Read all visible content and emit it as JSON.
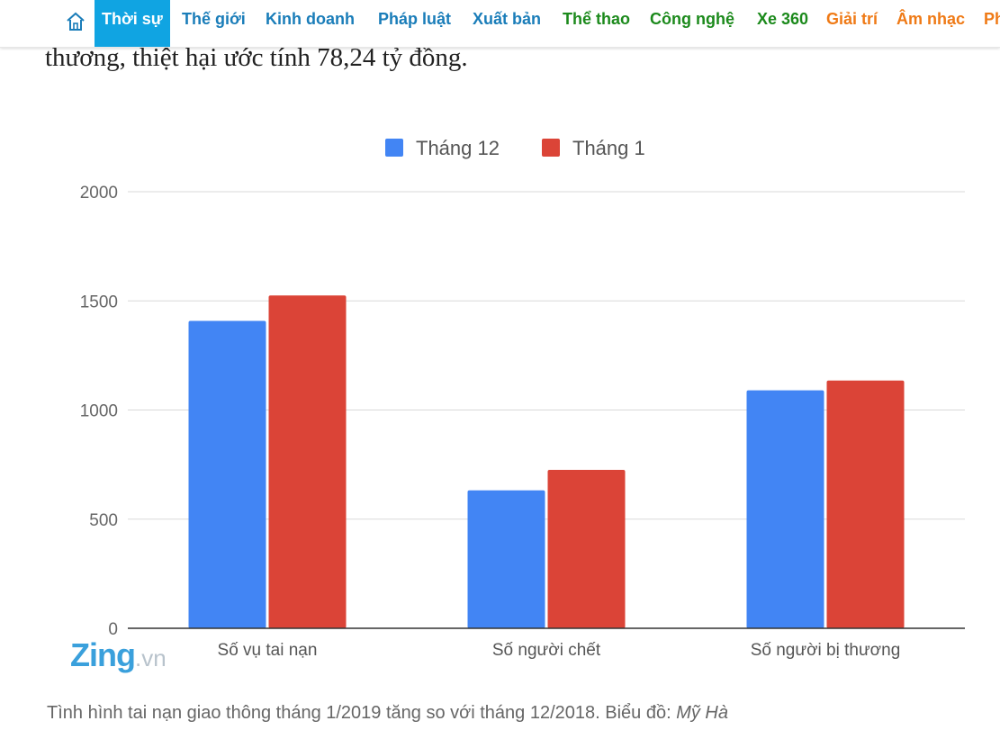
{
  "nav": {
    "items": [
      {
        "label": "Thời sự",
        "color": "#ffffff",
        "active": true
      },
      {
        "label": "Thế giới",
        "color": "#1a7db9"
      },
      {
        "label": "Kinh doanh",
        "color": "#1a7db9"
      },
      {
        "label": "Pháp luật",
        "color": "#1a7db9"
      },
      {
        "label": "Xuất bản",
        "color": "#1a7db9"
      },
      {
        "label": "Thể thao",
        "color": "#1c8a1c"
      },
      {
        "label": "Công nghệ",
        "color": "#1c8a1c"
      },
      {
        "label": "Xe 360",
        "color": "#1c8a1c"
      },
      {
        "label": "Giải trí",
        "color": "#ef7a16"
      },
      {
        "label": "Âm nhạc",
        "color": "#ef7a16"
      },
      {
        "label": "Ph",
        "color": "#ef7a16"
      }
    ],
    "active_bg": "#10a4e2",
    "home_icon": "home-icon"
  },
  "article": {
    "lead_text": "thương, thiệt hại ước tính 78,24 tỷ đồng.",
    "caption_text": "Tình hình tai nạn giao thông tháng 1/2019 tăng so với tháng 12/2018. Biểu đồ: ",
    "caption_author": "Mỹ Hà"
  },
  "watermark": {
    "brand": "Zing",
    "suffix": ".vn"
  },
  "chart_data": {
    "type": "bar",
    "categories": [
      "Số vụ tai nạn",
      "Số người chết",
      "Số người bị thương"
    ],
    "series": [
      {
        "name": "Tháng 12",
        "values": [
          1408,
          632,
          1090
        ],
        "color": "#4285f4"
      },
      {
        "name": "Tháng 1",
        "values": [
          1525,
          726,
          1135
        ],
        "color": "#db4437"
      }
    ],
    "yticks": [
      0,
      500,
      1000,
      1500,
      2000
    ],
    "ylim": [
      0,
      2000
    ],
    "legend": "top",
    "grid": true
  }
}
